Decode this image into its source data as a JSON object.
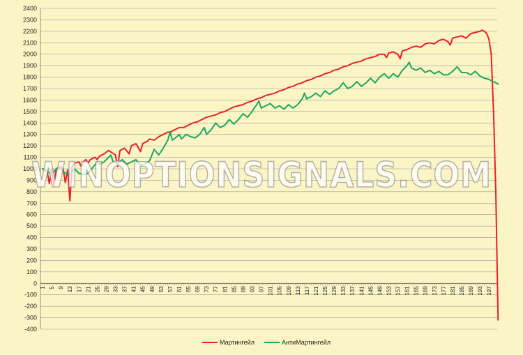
{
  "chart_data": {
    "type": "line",
    "title": "",
    "xlabel": "",
    "ylabel": "",
    "ylim": [
      -400,
      2400
    ],
    "ytick_step": 100,
    "xlim": [
      1,
      200
    ],
    "xticks": [
      1,
      5,
      9,
      13,
      17,
      21,
      25,
      29,
      33,
      37,
      41,
      45,
      49,
      53,
      57,
      61,
      65,
      69,
      73,
      77,
      81,
      85,
      89,
      93,
      97,
      101,
      105,
      109,
      113,
      117,
      121,
      125,
      129,
      133,
      137,
      141,
      145,
      149,
      153,
      157,
      161,
      165,
      169,
      173,
      177,
      181,
      185,
      189,
      193,
      197
    ],
    "grid": "horizontal",
    "legend_position": "bottom",
    "series": [
      {
        "name": "Мартингейл",
        "color": "#e8202a",
        "points": [
          [
            1,
            1000
          ],
          [
            3,
            980
          ],
          [
            4,
            870
          ],
          [
            5,
            1000
          ],
          [
            6,
            850
          ],
          [
            7,
            1000
          ],
          [
            9,
            1020
          ],
          [
            10,
            1000
          ],
          [
            11,
            880
          ],
          [
            12,
            990
          ],
          [
            13,
            720
          ],
          [
            14,
            1020
          ],
          [
            15,
            1050
          ],
          [
            17,
            1060
          ],
          [
            18,
            1020
          ],
          [
            19,
            1060
          ],
          [
            20,
            1080
          ],
          [
            21,
            1050
          ],
          [
            22,
            1080
          ],
          [
            24,
            1100
          ],
          [
            25,
            1080
          ],
          [
            26,
            1110
          ],
          [
            28,
            1130
          ],
          [
            30,
            1160
          ],
          [
            33,
            1120
          ],
          [
            34,
            1020
          ],
          [
            35,
            1160
          ],
          [
            37,
            1180
          ],
          [
            39,
            1130
          ],
          [
            40,
            1200
          ],
          [
            42,
            1220
          ],
          [
            44,
            1150
          ],
          [
            45,
            1220
          ],
          [
            47,
            1240
          ],
          [
            48,
            1260
          ],
          [
            50,
            1250
          ],
          [
            52,
            1280
          ],
          [
            54,
            1300
          ],
          [
            56,
            1320
          ],
          [
            57,
            1320
          ],
          [
            59,
            1340
          ],
          [
            61,
            1360
          ],
          [
            63,
            1360
          ],
          [
            65,
            1380
          ],
          [
            67,
            1400
          ],
          [
            69,
            1410
          ],
          [
            71,
            1430
          ],
          [
            73,
            1450
          ],
          [
            75,
            1460
          ],
          [
            77,
            1470
          ],
          [
            79,
            1490
          ],
          [
            81,
            1500
          ],
          [
            83,
            1520
          ],
          [
            85,
            1540
          ],
          [
            87,
            1550
          ],
          [
            89,
            1560
          ],
          [
            91,
            1580
          ],
          [
            93,
            1590
          ],
          [
            95,
            1610
          ],
          [
            97,
            1620
          ],
          [
            99,
            1640
          ],
          [
            101,
            1650
          ],
          [
            103,
            1660
          ],
          [
            105,
            1680
          ],
          [
            107,
            1690
          ],
          [
            109,
            1710
          ],
          [
            111,
            1720
          ],
          [
            113,
            1740
          ],
          [
            115,
            1750
          ],
          [
            117,
            1770
          ],
          [
            119,
            1780
          ],
          [
            121,
            1800
          ],
          [
            123,
            1810
          ],
          [
            125,
            1830
          ],
          [
            127,
            1840
          ],
          [
            129,
            1860
          ],
          [
            131,
            1870
          ],
          [
            133,
            1890
          ],
          [
            135,
            1900
          ],
          [
            137,
            1920
          ],
          [
            139,
            1930
          ],
          [
            141,
            1940
          ],
          [
            143,
            1960
          ],
          [
            145,
            1970
          ],
          [
            147,
            1980
          ],
          [
            149,
            2000
          ],
          [
            151,
            2000
          ],
          [
            152,
            1970
          ],
          [
            153,
            2010
          ],
          [
            155,
            2020
          ],
          [
            157,
            2000
          ],
          [
            158,
            1960
          ],
          [
            159,
            2030
          ],
          [
            161,
            2040
          ],
          [
            163,
            2060
          ],
          [
            165,
            2070
          ],
          [
            167,
            2060
          ],
          [
            169,
            2090
          ],
          [
            171,
            2100
          ],
          [
            173,
            2090
          ],
          [
            175,
            2120
          ],
          [
            177,
            2130
          ],
          [
            179,
            2110
          ],
          [
            180,
            2080
          ],
          [
            181,
            2140
          ],
          [
            183,
            2150
          ],
          [
            185,
            2160
          ],
          [
            187,
            2140
          ],
          [
            189,
            2180
          ],
          [
            191,
            2190
          ],
          [
            193,
            2200
          ],
          [
            194,
            2210
          ],
          [
            195,
            2200
          ],
          [
            196,
            2180
          ],
          [
            197,
            2130
          ],
          [
            198,
            2000
          ],
          [
            199,
            1500
          ],
          [
            200,
            800
          ],
          [
            201,
            -320
          ]
        ]
      },
      {
        "name": "АнтиМартингейл",
        "color": "#1aa85c",
        "points": [
          [
            1,
            1000
          ],
          [
            3,
            980
          ],
          [
            5,
            950
          ],
          [
            7,
            1000
          ],
          [
            9,
            1000
          ],
          [
            11,
            960
          ],
          [
            13,
            950
          ],
          [
            15,
            1000
          ],
          [
            17,
            960
          ],
          [
            19,
            950
          ],
          [
            21,
            960
          ],
          [
            23,
            1010
          ],
          [
            25,
            1060
          ],
          [
            26,
            1040
          ],
          [
            28,
            1060
          ],
          [
            30,
            1100
          ],
          [
            31,
            1120
          ],
          [
            32,
            1060
          ],
          [
            34,
            1050
          ],
          [
            36,
            1080
          ],
          [
            38,
            1040
          ],
          [
            40,
            1060
          ],
          [
            42,
            1080
          ],
          [
            44,
            1030
          ],
          [
            46,
            1040
          ],
          [
            48,
            1070
          ],
          [
            50,
            1170
          ],
          [
            52,
            1120
          ],
          [
            54,
            1180
          ],
          [
            56,
            1250
          ],
          [
            57,
            1320
          ],
          [
            58,
            1250
          ],
          [
            60,
            1280
          ],
          [
            61,
            1300
          ],
          [
            62,
            1260
          ],
          [
            64,
            1300
          ],
          [
            66,
            1280
          ],
          [
            68,
            1270
          ],
          [
            70,
            1300
          ],
          [
            72,
            1360
          ],
          [
            73,
            1300
          ],
          [
            75,
            1340
          ],
          [
            77,
            1400
          ],
          [
            79,
            1360
          ],
          [
            81,
            1380
          ],
          [
            83,
            1430
          ],
          [
            85,
            1390
          ],
          [
            87,
            1430
          ],
          [
            89,
            1480
          ],
          [
            91,
            1450
          ],
          [
            93,
            1500
          ],
          [
            95,
            1560
          ],
          [
            96,
            1590
          ],
          [
            97,
            1530
          ],
          [
            99,
            1550
          ],
          [
            101,
            1570
          ],
          [
            103,
            1530
          ],
          [
            105,
            1550
          ],
          [
            107,
            1520
          ],
          [
            109,
            1560
          ],
          [
            111,
            1530
          ],
          [
            113,
            1560
          ],
          [
            115,
            1610
          ],
          [
            116,
            1660
          ],
          [
            117,
            1610
          ],
          [
            119,
            1630
          ],
          [
            121,
            1660
          ],
          [
            123,
            1630
          ],
          [
            125,
            1680
          ],
          [
            127,
            1650
          ],
          [
            129,
            1680
          ],
          [
            131,
            1700
          ],
          [
            133,
            1750
          ],
          [
            135,
            1700
          ],
          [
            137,
            1720
          ],
          [
            139,
            1760
          ],
          [
            141,
            1720
          ],
          [
            143,
            1750
          ],
          [
            145,
            1790
          ],
          [
            147,
            1750
          ],
          [
            149,
            1800
          ],
          [
            151,
            1830
          ],
          [
            153,
            1790
          ],
          [
            155,
            1830
          ],
          [
            157,
            1800
          ],
          [
            159,
            1860
          ],
          [
            161,
            1900
          ],
          [
            162,
            1930
          ],
          [
            163,
            1880
          ],
          [
            165,
            1860
          ],
          [
            167,
            1880
          ],
          [
            169,
            1840
          ],
          [
            171,
            1860
          ],
          [
            173,
            1830
          ],
          [
            175,
            1850
          ],
          [
            177,
            1820
          ],
          [
            179,
            1820
          ],
          [
            181,
            1850
          ],
          [
            183,
            1890
          ],
          [
            185,
            1840
          ],
          [
            187,
            1840
          ],
          [
            189,
            1820
          ],
          [
            191,
            1850
          ],
          [
            193,
            1810
          ],
          [
            195,
            1790
          ],
          [
            197,
            1780
          ],
          [
            199,
            1760
          ],
          [
            201,
            1740
          ]
        ]
      }
    ]
  },
  "watermark": "WINOPTIONSIGNALS.COM"
}
